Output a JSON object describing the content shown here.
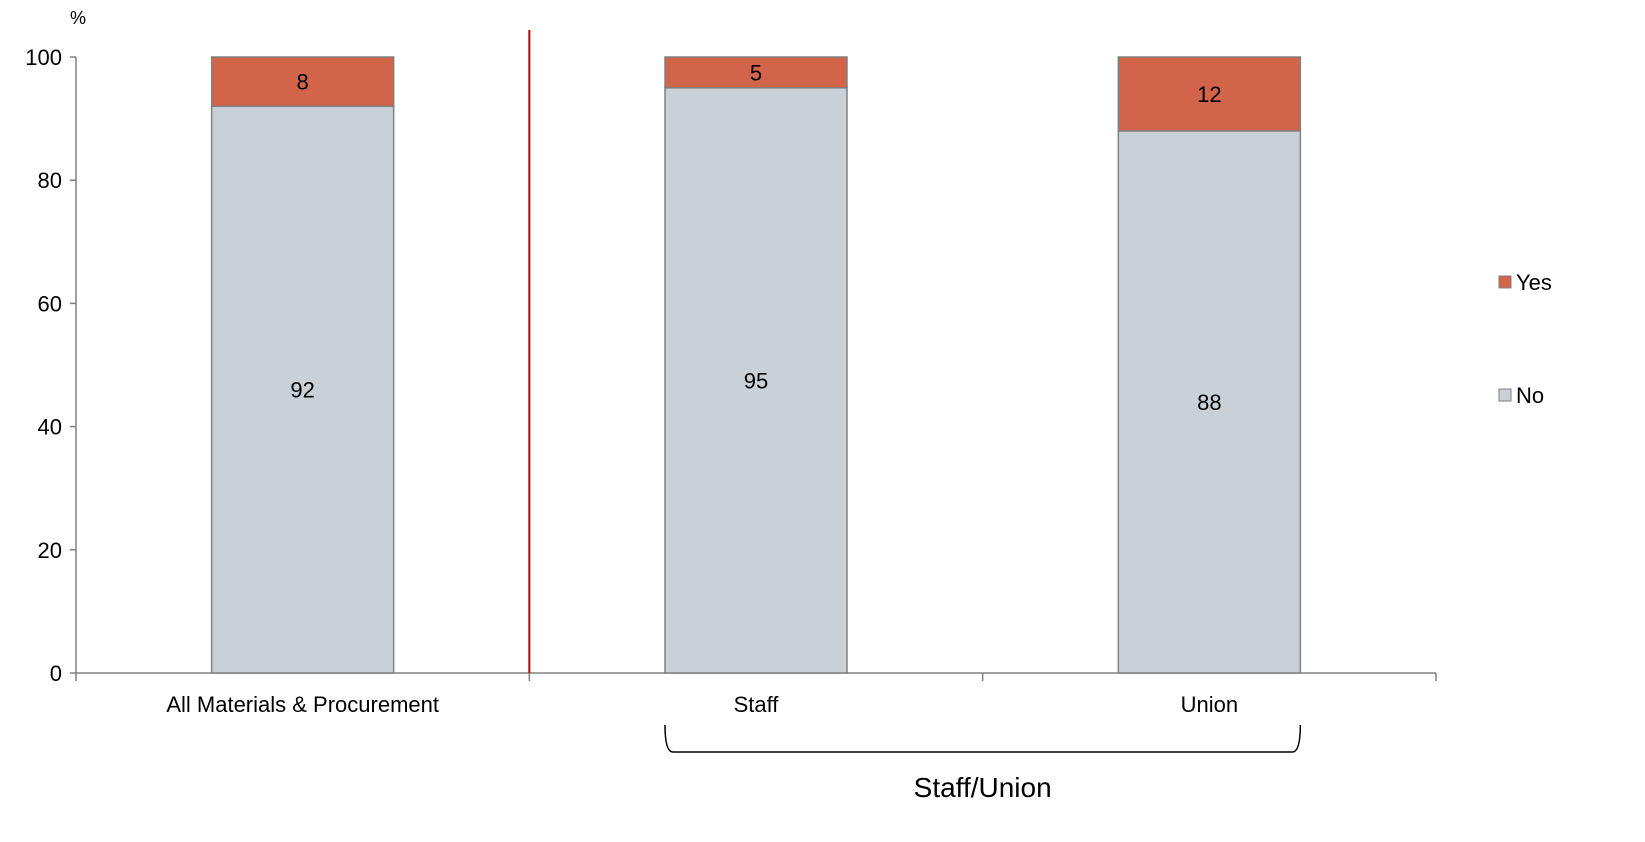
{
  "chart_data": {
    "type": "bar",
    "stacked": true,
    "categories": [
      "All Materials & Procurement",
      "Staff",
      "Union"
    ],
    "series": [
      {
        "name": "No",
        "values": [
          92,
          95,
          88
        ],
        "color": "#c8d1d8"
      },
      {
        "name": "Yes",
        "values": [
          8,
          5,
          12
        ],
        "color": "#d2644a"
      }
    ],
    "y_unit": "%",
    "ylim": [
      0,
      100
    ],
    "yticks": [
      0,
      20,
      40,
      60,
      80,
      100
    ],
    "legend_position": "right",
    "legend_order": [
      "Yes",
      "No"
    ],
    "divider_after_category": 0,
    "divider_color": "#c00000",
    "grouping": {
      "label": "Staff/Union",
      "categories": [
        "Staff",
        "Union"
      ]
    },
    "grid": false
  }
}
